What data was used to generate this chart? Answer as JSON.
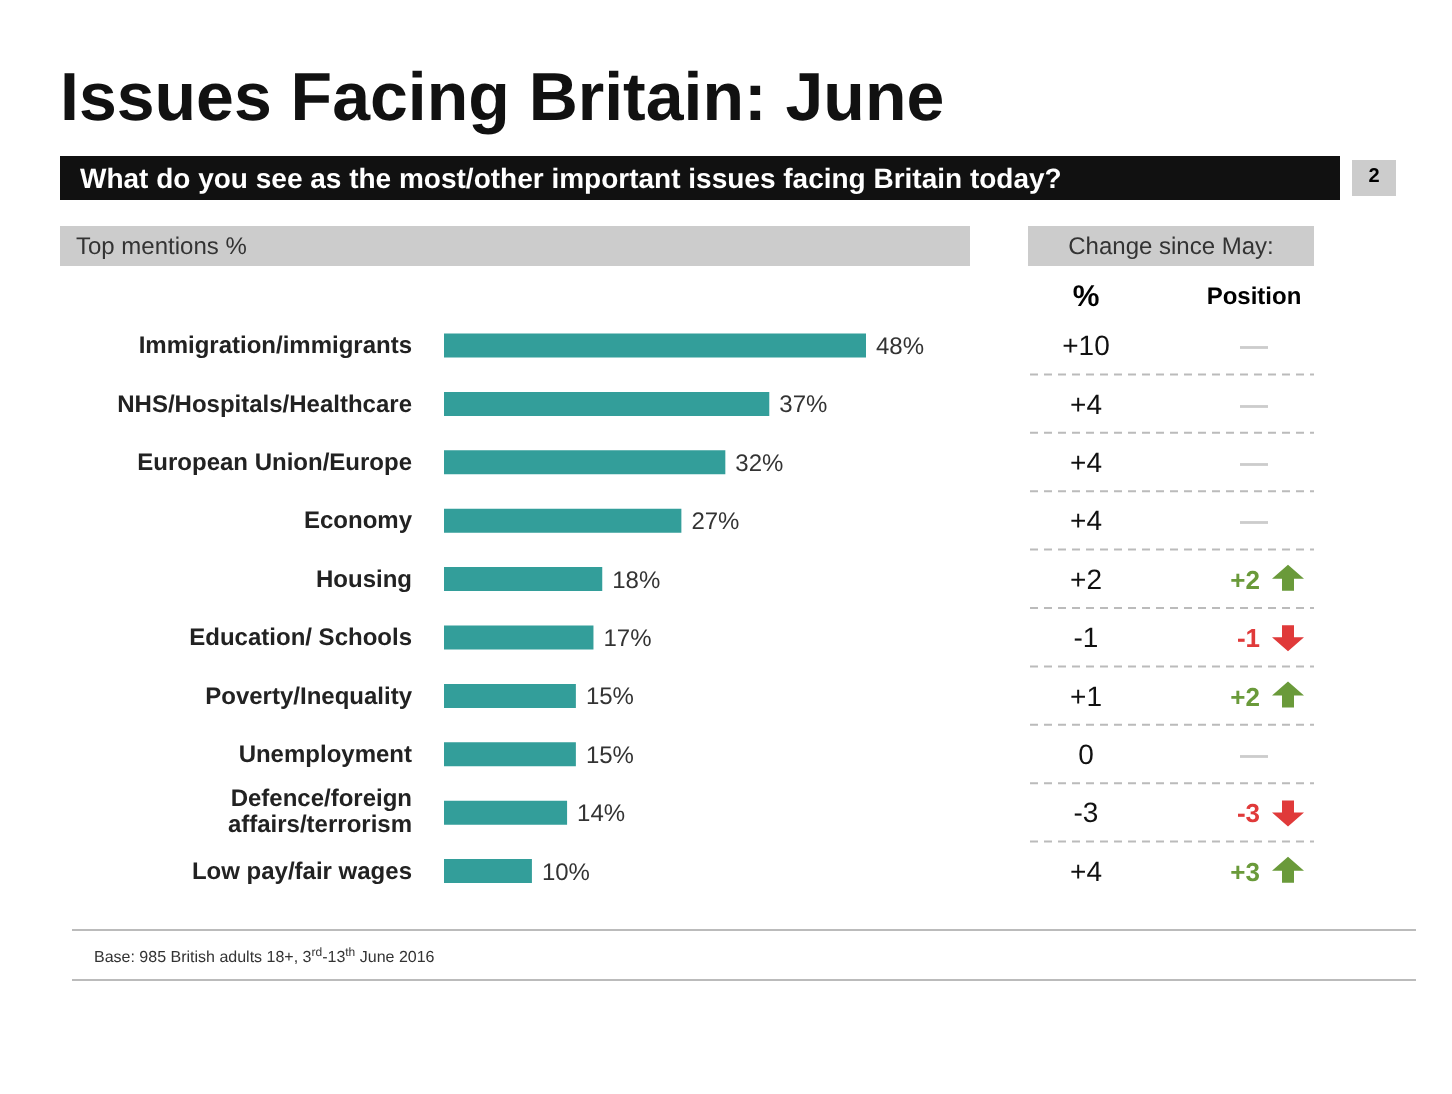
{
  "chart_data": {
    "type": "bar",
    "orientation": "horizontal",
    "title": "Issues Facing Britain: June",
    "subtitle": "What do you see as the most/other important issues facing Britain today?",
    "categories": [
      "Immigration/immigrants",
      "NHS/Hospitals/Healthcare",
      "European Union/Europe",
      "Economy",
      "Housing",
      "Education/ Schools",
      "Poverty/Inequality",
      "Unemployment",
      "Defence/foreign affairs/terrorism",
      "Low pay/fair wages"
    ],
    "values": [
      48,
      37,
      32,
      27,
      18,
      17,
      15,
      15,
      14,
      10
    ],
    "value_labels": [
      "48%",
      "37%",
      "32%",
      "27%",
      "18%",
      "17%",
      "15%",
      "15%",
      "14%",
      "10%"
    ],
    "color": "#339e9a",
    "annotations": [
      "2",
      "Top mentions %",
      "Change since May:",
      "%",
      "Position",
      "Base: 985 British adults 18+, 3$^{rd}$-13$^{th}$ June 2016",
      "+10",
      "+4",
      "+4",
      "+4",
      "+2",
      "-1",
      "+1",
      "0",
      "-3",
      "+4",
      "—",
      "—",
      "—",
      "—",
      "+2",
      "-1",
      "+2",
      "—",
      "-3",
      "+3"
    ]
  }
}
